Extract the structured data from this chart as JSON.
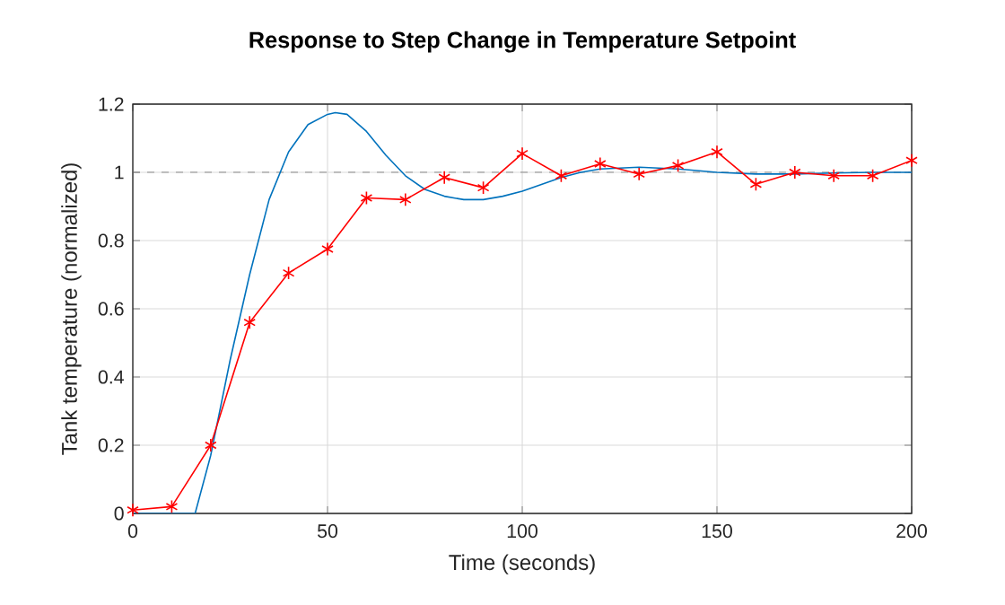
{
  "chart_data": {
    "type": "line",
    "title": "Response to Step Change in Temperature Setpoint",
    "xlabel": "Time (seconds)",
    "ylabel": "Tank temperature (normalized)",
    "xlim": [
      0,
      200
    ],
    "xticks": [
      0,
      50,
      100,
      150,
      200
    ],
    "ylim": [
      0,
      1.2
    ],
    "yticks": [
      0,
      0.2,
      0.4,
      0.6,
      0.8,
      1,
      1.2
    ],
    "grid": true,
    "line_style": "solid",
    "ref_lines": [
      {
        "axis": "y",
        "value": 1,
        "color": "#7f7f7f",
        "line_style": "dashed"
      }
    ],
    "series": [
      {
        "color": "#0072bd",
        "marker": "none",
        "x": [
          0,
          16,
          20,
          25,
          30,
          35,
          40,
          45,
          50,
          52,
          55,
          60,
          65,
          70,
          75,
          80,
          85,
          90,
          95,
          100,
          105,
          110,
          115,
          120,
          130,
          140,
          150,
          160,
          170,
          180,
          190,
          200
        ],
        "values": [
          0,
          0,
          0.17,
          0.45,
          0.7,
          0.92,
          1.06,
          1.14,
          1.17,
          1.175,
          1.17,
          1.12,
          1.05,
          0.99,
          0.95,
          0.93,
          0.92,
          0.92,
          0.93,
          0.945,
          0.965,
          0.985,
          1.0,
          1.01,
          1.015,
          1.01,
          1.0,
          0.995,
          0.995,
          0.998,
          1.0,
          1.0
        ]
      },
      {
        "color": "#ff0000",
        "marker": "cross",
        "x": [
          0,
          10,
          20,
          30,
          40,
          50,
          60,
          70,
          80,
          90,
          100,
          110,
          120,
          130,
          140,
          150,
          160,
          170,
          180,
          190,
          200
        ],
        "values": [
          0.01,
          0.02,
          0.2,
          0.56,
          0.705,
          0.775,
          0.925,
          0.92,
          0.985,
          0.955,
          1.055,
          0.99,
          1.025,
          0.995,
          1.02,
          1.06,
          0.965,
          1.0,
          0.99,
          0.99,
          1.035
        ]
      }
    ]
  }
}
